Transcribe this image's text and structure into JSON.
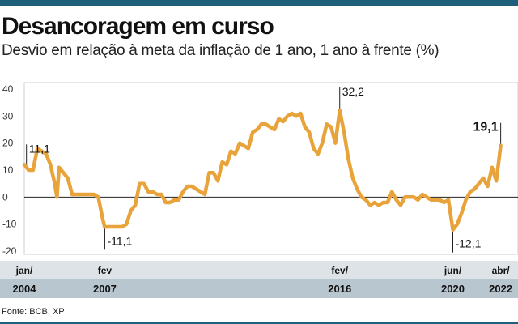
{
  "header": {
    "title": "Desancoragem em curso",
    "subtitle": "Desvio em relação à meta da inflação de 1 ano, 1 ano à frente (%)"
  },
  "footer": {
    "source": "Fonte: BCB, XP"
  },
  "colors": {
    "line": "#e8a33a",
    "band": "#1f5f7a",
    "axis": "#333333",
    "grid": "#cccccc",
    "month_row": "#dde3e7",
    "year_row": "#b8c6cf"
  },
  "chart_data": {
    "type": "line",
    "title": "Desancoragem em curso",
    "subtitle": "Desvio em relação à meta da inflação de 1 ano, 1 ano à frente (%)",
    "xlabel": "",
    "ylabel": "",
    "ylim": [
      -20,
      40
    ],
    "yticks": [
      40,
      30,
      20,
      10,
      0,
      -10,
      -20
    ],
    "xlim": [
      "2004-01",
      "2022-06"
    ],
    "grid": false,
    "x_ticks": [
      {
        "month": "jan/",
        "year": "2004",
        "date": "2004-01"
      },
      {
        "month": "fev",
        "year": "2007",
        "date": "2007-02"
      },
      {
        "month": "fev/",
        "year": "2016",
        "date": "2016-02"
      },
      {
        "month": "jun/",
        "year": "2020",
        "date": "2020-06"
      },
      {
        "month": "abr/",
        "year": "2022",
        "date": "2022-04"
      }
    ],
    "annotations": [
      {
        "label": "11,1",
        "x": "2004-02",
        "y": 11.1,
        "bold": false
      },
      {
        "label": "-11,1",
        "x": "2007-02",
        "y": -11.1,
        "bold": false
      },
      {
        "label": "32,2",
        "x": "2016-02",
        "y": 32.2,
        "bold": false
      },
      {
        "label": "-12,1",
        "x": "2020-06",
        "y": -12.1,
        "bold": false
      },
      {
        "label": "19,1",
        "x": "2022-04",
        "y": 19.1,
        "bold": true
      }
    ],
    "series": [
      {
        "x": [
          "2004-01",
          "2004-03",
          "2004-05",
          "2004-07",
          "2004-09",
          "2004-11",
          "2005-01",
          "2005-03",
          "2005-04",
          "2005-05",
          "2005-07",
          "2005-09",
          "2005-11",
          "2006-01",
          "2006-03",
          "2006-05",
          "2006-07",
          "2006-09",
          "2006-11",
          "2007-01",
          "2007-02",
          "2007-04",
          "2007-06",
          "2007-08",
          "2007-10",
          "2007-12",
          "2008-02",
          "2008-04",
          "2008-06",
          "2008-08",
          "2008-10",
          "2008-12",
          "2009-02",
          "2009-04",
          "2009-06",
          "2009-08",
          "2009-10",
          "2009-12",
          "2010-02",
          "2010-04",
          "2010-06",
          "2010-08",
          "2010-10",
          "2010-12",
          "2011-02",
          "2011-04",
          "2011-06",
          "2011-08",
          "2011-10",
          "2011-12",
          "2012-02",
          "2012-04",
          "2012-06",
          "2012-08",
          "2012-10",
          "2012-12",
          "2013-02",
          "2013-04",
          "2013-06",
          "2013-08",
          "2013-10",
          "2013-12",
          "2014-02",
          "2014-04",
          "2014-06",
          "2014-08",
          "2014-10",
          "2014-12",
          "2015-02",
          "2015-04",
          "2015-06",
          "2015-08",
          "2015-10",
          "2015-12",
          "2016-02",
          "2016-04",
          "2016-06",
          "2016-08",
          "2016-10",
          "2016-12",
          "2017-02",
          "2017-04",
          "2017-06",
          "2017-08",
          "2017-10",
          "2017-12",
          "2018-02",
          "2018-04",
          "2018-06",
          "2018-08",
          "2018-10",
          "2018-12",
          "2019-02",
          "2019-04",
          "2019-06",
          "2019-08",
          "2019-10",
          "2019-12",
          "2020-02",
          "2020-04",
          "2020-06",
          "2020-08",
          "2020-10",
          "2020-12",
          "2021-02",
          "2021-04",
          "2021-06",
          "2021-08",
          "2021-10",
          "2021-12",
          "2022-02",
          "2022-04"
        ],
        "values": [
          12,
          10,
          10,
          18,
          17,
          16,
          12,
          5,
          0,
          11,
          9,
          7,
          1,
          1,
          1,
          1,
          1,
          1,
          0,
          -8,
          -11.1,
          -11,
          -11,
          -11,
          -11,
          -10,
          -5,
          -3,
          5,
          5,
          2,
          2,
          1,
          1,
          -2,
          -2,
          -1,
          -1,
          2,
          4,
          4,
          3,
          2,
          1,
          9,
          9,
          6,
          13,
          12,
          17,
          16,
          20,
          19,
          18,
          24,
          25,
          27,
          27,
          26,
          25,
          29,
          28,
          30,
          31,
          30,
          31,
          26,
          24,
          18,
          16,
          20,
          27,
          26,
          20,
          32.2,
          24,
          14,
          7,
          3,
          0,
          -1,
          -3,
          -2,
          -3,
          -2,
          -2,
          2,
          -1,
          -3,
          0,
          0,
          0,
          -1,
          1,
          0,
          -1,
          -1,
          -1,
          -2,
          -1,
          -12.1,
          -10,
          -6,
          -1,
          2,
          3,
          5,
          7,
          4,
          11,
          6,
          19.1
        ]
      }
    ]
  }
}
